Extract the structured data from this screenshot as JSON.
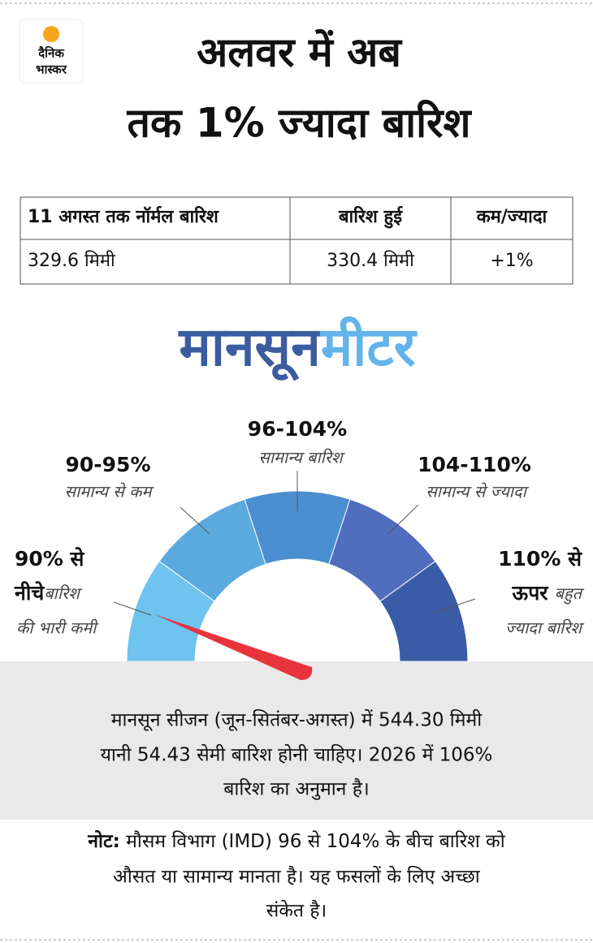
{
  "logo": {
    "line1": "दैनिक",
    "line2": "भास्कर"
  },
  "title": {
    "line1": "अलवर में अब",
    "line2": "तक 1% ज्यादा बारिश"
  },
  "table": {
    "header": [
      "11 अगस्त तक नॉर्मल बारिश",
      "बारिश हुई",
      "कम/ज्यादा"
    ],
    "rows": [
      [
        "329.6 मिमी",
        "330.4 मिमी",
        "+1%"
      ]
    ]
  },
  "meter": {
    "title_part1": "मानसून",
    "title_part2": "मीटर",
    "segments": [
      {
        "range_line1": "90% से",
        "range_line2": "नीचे",
        "desc_line1": "बारिश",
        "desc_line2": "की भारी कमी"
      },
      {
        "range": "90-95%",
        "desc": "सामान्य से कम"
      },
      {
        "range": "96-104%",
        "desc": "सामान्य बारिश"
      },
      {
        "range": "104-110%",
        "desc": "सामान्य से ज्यादा"
      },
      {
        "range_line1": "110% से",
        "range_line2": "ऊपर",
        "desc_line1": "बहुत",
        "desc_line2": "ज्यादा बारिश"
      }
    ]
  },
  "info": {
    "lines": [
      "मानसून सीजन (जून-सितंबर-अगस्त) में 544.30 मिमी",
      "यानी 54.43 सेमी बारिश होनी चाहिए। 2026 में 106%",
      "बारिश का अनुमान है।"
    ]
  },
  "note": {
    "label": "नोट:",
    "lines": [
      " मौसम विभाग (IMD) 96 से 104% के बीच बारिश को",
      "औसत या सामान्य मानता है। यह फसलों के लिए अच्छा",
      "संकेत है।"
    ]
  }
}
